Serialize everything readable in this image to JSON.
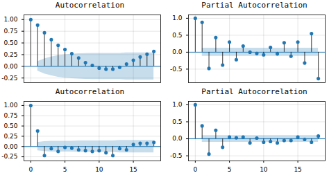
{
  "chart_data": [
    {
      "type": "stem",
      "title": "Autocorrelation",
      "color": "#1f77b4",
      "grid": true,
      "tick_labels": "y",
      "baseline": 0,
      "x": [
        0,
        1,
        2,
        3,
        4,
        5,
        6,
        7,
        8,
        9,
        10,
        11,
        12,
        13,
        14,
        15,
        16,
        17,
        18
      ],
      "values": [
        1.0,
        0.88,
        0.72,
        0.57,
        0.45,
        0.36,
        0.27,
        0.18,
        0.08,
        0.02,
        -0.04,
        -0.06,
        -0.06,
        -0.02,
        0.05,
        0.13,
        0.2,
        0.26,
        0.32
      ],
      "band_lower": [
        null,
        -0.1,
        -0.16,
        -0.2,
        -0.23,
        -0.25,
        -0.26,
        -0.27,
        -0.275,
        -0.28,
        -0.28,
        -0.28,
        -0.28,
        -0.28,
        -0.29,
        -0.29,
        -0.29,
        -0.29,
        -0.29
      ],
      "band_upper": [
        null,
        0.1,
        0.16,
        0.2,
        0.23,
        0.25,
        0.26,
        0.27,
        0.275,
        0.28,
        0.28,
        0.28,
        0.28,
        0.28,
        0.29,
        0.29,
        0.29,
        0.29,
        0.29
      ],
      "xlim": [
        -1,
        19
      ],
      "xticks": [
        0,
        5,
        10,
        15
      ],
      "ylim": [
        -0.35,
        1.1
      ],
      "yticks": [
        {
          "value": -0.25,
          "label": "-0.25"
        },
        {
          "value": 0,
          "label": "0.00"
        },
        {
          "value": 0.25,
          "label": "0.25"
        },
        {
          "value": 0.5,
          "label": "0.50"
        },
        {
          "value": 0.75,
          "label": "0.75"
        },
        {
          "value": 1,
          "label": "1.00"
        }
      ]
    },
    {
      "type": "stem",
      "title": "Partial Autocorrelation",
      "color": "#1f77b4",
      "grid": true,
      "tick_labels": "y",
      "baseline": 0,
      "x": [
        0,
        1,
        2,
        3,
        4,
        5,
        6,
        7,
        8,
        9,
        10,
        11,
        12,
        13,
        14,
        15,
        16,
        17,
        18
      ],
      "values": [
        1.0,
        0.88,
        -0.48,
        0.43,
        -0.38,
        0.3,
        -0.22,
        0.18,
        0.0,
        -0.04,
        -0.08,
        0.14,
        -0.05,
        0.28,
        -0.12,
        0.3,
        -0.32,
        0.55,
        -0.78
      ],
      "band_lower": [
        null,
        -0.12,
        -0.12,
        -0.12,
        -0.12,
        -0.12,
        -0.12,
        -0.12,
        -0.12,
        -0.12,
        -0.12,
        -0.12,
        -0.12,
        -0.12,
        -0.12,
        -0.12,
        -0.12,
        -0.12,
        -0.12
      ],
      "band_upper": [
        null,
        0.12,
        0.12,
        0.12,
        0.12,
        0.12,
        0.12,
        0.12,
        0.12,
        0.12,
        0.12,
        0.12,
        0.12,
        0.12,
        0.12,
        0.12,
        0.12,
        0.12,
        0.12
      ],
      "xlim": [
        -1,
        19
      ],
      "xticks": [
        0,
        5,
        10,
        15
      ],
      "ylim": [
        -0.9,
        1.1
      ],
      "yticks": [
        {
          "value": -0.5,
          "label": "-0.5"
        },
        {
          "value": 0,
          "label": "0.0"
        },
        {
          "value": 0.5,
          "label": "0.5"
        },
        {
          "value": 1,
          "label": "1.0"
        }
      ]
    },
    {
      "type": "stem",
      "title": "Autocorrelation",
      "color": "#1f77b4",
      "grid": true,
      "baseline": 0,
      "x": [
        0,
        1,
        2,
        3,
        4,
        5,
        6,
        7,
        8,
        9,
        10,
        11,
        12,
        13,
        14,
        15,
        16,
        17,
        18
      ],
      "values": [
        1.0,
        0.38,
        -0.22,
        -0.05,
        -0.12,
        -0.02,
        -0.04,
        -0.08,
        -0.1,
        -0.12,
        -0.1,
        -0.15,
        -0.22,
        -0.05,
        -0.08,
        0.05,
        0.08,
        0.08,
        0.1
      ],
      "band_lower": [
        null,
        -0.1,
        -0.12,
        -0.13,
        -0.13,
        -0.13,
        -0.13,
        -0.14,
        -0.14,
        -0.14,
        -0.14,
        -0.14,
        -0.14,
        -0.15,
        -0.15,
        -0.15,
        -0.15,
        -0.15,
        -0.15
      ],
      "band_upper": [
        null,
        0.1,
        0.12,
        0.13,
        0.13,
        0.13,
        0.13,
        0.14,
        0.14,
        0.14,
        0.14,
        0.14,
        0.14,
        0.15,
        0.15,
        0.15,
        0.15,
        0.15,
        0.15
      ],
      "xlim": [
        -1,
        19
      ],
      "xticks": [
        0,
        5,
        10,
        15
      ],
      "ylim": [
        -0.35,
        1.1
      ],
      "yticks": [
        {
          "value": -0.25,
          "label": "-0.25"
        },
        {
          "value": 0,
          "label": "0.00"
        },
        {
          "value": 0.25,
          "label": "0.25"
        },
        {
          "value": 0.5,
          "label": "0.50"
        },
        {
          "value": 0.75,
          "label": "0.75"
        },
        {
          "value": 1,
          "label": "1.00"
        }
      ]
    },
    {
      "type": "stem",
      "title": "Partial Autocorrelation",
      "color": "#1f77b4",
      "grid": true,
      "baseline": 0,
      "x": [
        0,
        1,
        2,
        3,
        4,
        5,
        6,
        7,
        8,
        9,
        10,
        11,
        12,
        13,
        14,
        15,
        16,
        17,
        18
      ],
      "values": [
        1.0,
        0.38,
        -0.45,
        0.25,
        -0.25,
        0.05,
        0.03,
        0.05,
        -0.12,
        0.02,
        -0.1,
        -0.08,
        -0.12,
        -0.05,
        -0.05,
        0.05,
        -0.02,
        -0.1,
        0.08
      ],
      "band_lower": [
        null,
        -0.1,
        -0.1,
        -0.1,
        -0.1,
        -0.1,
        -0.1,
        -0.1,
        -0.1,
        -0.1,
        -0.1,
        -0.1,
        -0.1,
        -0.1,
        -0.1,
        -0.1,
        -0.1,
        -0.1,
        -0.1
      ],
      "band_upper": [
        null,
        0.1,
        0.1,
        0.1,
        0.1,
        0.1,
        0.1,
        0.1,
        0.1,
        0.1,
        0.1,
        0.1,
        0.1,
        0.1,
        0.1,
        0.1,
        0.1,
        0.1,
        0.1
      ],
      "xlim": [
        -1,
        19
      ],
      "xticks": [
        0,
        5,
        10,
        15
      ],
      "ylim": [
        -0.65,
        1.1
      ],
      "yticks": [
        {
          "value": -0.5,
          "label": "-0.5"
        },
        {
          "value": 0,
          "label": "0.0"
        },
        {
          "value": 0.5,
          "label": "0.5"
        },
        {
          "value": 1,
          "label": "1.0"
        }
      ]
    }
  ]
}
